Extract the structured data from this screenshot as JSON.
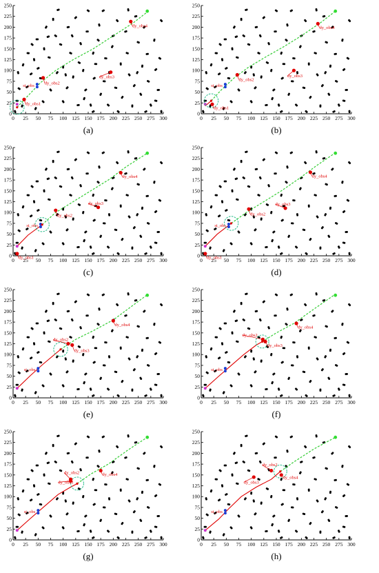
{
  "x_ticks": [
    "0",
    "25",
    "50",
    "75",
    "100",
    "125",
    "150",
    "175",
    "200",
    "225",
    "250",
    "275",
    "300"
  ],
  "y_ticks": [
    "0",
    "25",
    "50",
    "75",
    "100",
    "125",
    "150",
    "175",
    "200",
    "225",
    "250"
  ],
  "colors": {
    "axis": "#000000",
    "obstacle": "#000000",
    "dynamic_obstacle": "#e00000",
    "static_obstacle_marker": "#1a3fd6",
    "planned_path": "#33cc33",
    "traveled_path": "#e00000",
    "start": "#cc33cc",
    "goal": "#33dd33",
    "sensing_circle": "#22bb88"
  },
  "static_obstacles": [
    [
      8,
      30
    ],
    [
      12,
      58
    ],
    [
      10,
      95
    ],
    [
      20,
      113
    ],
    [
      28,
      62
    ],
    [
      30,
      140
    ],
    [
      38,
      160
    ],
    [
      42,
      125
    ],
    [
      45,
      12
    ],
    [
      50,
      105
    ],
    [
      55,
      82
    ],
    [
      60,
      28
    ],
    [
      62,
      150
    ],
    [
      66,
      200
    ],
    [
      70,
      178
    ],
    [
      72,
      130
    ],
    [
      75,
      55
    ],
    [
      80,
      218
    ],
    [
      88,
      95
    ],
    [
      90,
      240
    ],
    [
      95,
      160
    ],
    [
      100,
      28
    ],
    [
      100,
      108
    ],
    [
      108,
      60
    ],
    [
      110,
      200
    ],
    [
      115,
      140
    ],
    [
      118,
      180
    ],
    [
      120,
      85
    ],
    [
      125,
      222
    ],
    [
      130,
      20
    ],
    [
      132,
      118
    ],
    [
      135,
      162
    ],
    [
      140,
      100
    ],
    [
      145,
      55
    ],
    [
      148,
      190
    ],
    [
      150,
      238
    ],
    [
      155,
      20
    ],
    [
      160,
      140
    ],
    [
      162,
      82
    ],
    [
      165,
      115
    ],
    [
      170,
      170
    ],
    [
      172,
      205
    ],
    [
      175,
      45
    ],
    [
      180,
      238
    ],
    [
      185,
      128
    ],
    [
      190,
      20
    ],
    [
      192,
      95
    ],
    [
      198,
      155
    ],
    [
      200,
      180
    ],
    [
      205,
      60
    ],
    [
      208,
      215
    ],
    [
      215,
      115
    ],
    [
      218,
      38
    ],
    [
      225,
      190
    ],
    [
      228,
      140
    ],
    [
      232,
      90
    ],
    [
      238,
      18
    ],
    [
      242,
      65
    ],
    [
      245,
      225
    ],
    [
      250,
      165
    ],
    [
      255,
      45
    ],
    [
      258,
      110
    ],
    [
      262,
      200
    ],
    [
      268,
      138
    ],
    [
      270,
      75
    ],
    [
      275,
      20
    ],
    [
      282,
      170
    ],
    [
      285,
      102
    ],
    [
      290,
      55
    ],
    [
      293,
      128
    ],
    [
      4,
      5
    ],
    [
      18,
      18
    ],
    [
      36,
      92
    ],
    [
      48,
      172
    ],
    [
      85,
      180
    ],
    [
      105,
      90
    ],
    [
      142,
      35
    ],
    [
      160,
      5
    ],
    [
      182,
      75
    ],
    [
      210,
      5
    ],
    [
      230,
      240
    ],
    [
      248,
      95
    ],
    [
      265,
      5
    ],
    [
      285,
      30
    ],
    [
      296,
      215
    ],
    [
      296,
      5
    ]
  ],
  "panels": [
    {
      "letter": "a",
      "label": "(a)",
      "st_obs": {
        "label": "st_obs",
        "x": 48,
        "y": 65
      },
      "dy": [
        {
          "label": "dy_obs1",
          "x": 22,
          "y": 33,
          "lx": 25,
          "ly": 20
        },
        {
          "label": "dy_obs2",
          "x": 60,
          "y": 83,
          "lx": 63,
          "ly": 68
        },
        {
          "label": "dy_obs3",
          "x": 195,
          "y": 96,
          "lx": 172,
          "ly": 82
        },
        {
          "label": "dy_obs4",
          "x": 235,
          "y": 213,
          "lx": 238,
          "ly": 200
        }
      ],
      "robot": [
        8,
        15
      ],
      "circle": {
        "x": 8,
        "y": 15,
        "r": 14
      },
      "traveled": [
        [
          8,
          15
        ]
      ],
      "planned": [
        [
          8,
          15
        ],
        [
          30,
          42
        ],
        [
          55,
          72
        ],
        [
          85,
          100
        ],
        [
          120,
          125
        ],
        [
          160,
          150
        ],
        [
          200,
          180
        ],
        [
          240,
          210
        ],
        [
          268,
          235
        ]
      ]
    },
    {
      "letter": "b",
      "label": "(b)",
      "st_obs": {
        "label": "st_obs",
        "x": 48,
        "y": 65
      },
      "dy": [
        {
          "label": "dy_obs1",
          "x": 22,
          "y": 22,
          "lx": 25,
          "ly": 10
        },
        {
          "label": "dy_obs2",
          "x": 72,
          "y": 90,
          "lx": 75,
          "ly": 76
        },
        {
          "label": "dy_obs3",
          "x": 185,
          "y": 100,
          "lx": 172,
          "ly": 84
        },
        {
          "label": "dy_obs4",
          "x": 233,
          "y": 208,
          "lx": 236,
          "ly": 196
        }
      ],
      "robot": [
        20,
        30
      ],
      "circle": {
        "x": 20,
        "y": 30,
        "r": 14
      },
      "traveled": [
        [
          8,
          18
        ],
        [
          20,
          30
        ]
      ],
      "planned": [
        [
          20,
          30
        ],
        [
          40,
          55
        ],
        [
          65,
          82
        ],
        [
          95,
          108
        ],
        [
          130,
          132
        ],
        [
          165,
          155
        ],
        [
          200,
          180
        ],
        [
          238,
          210
        ],
        [
          268,
          237
        ]
      ]
    },
    {
      "letter": "c",
      "label": "(c)",
      "st_obs": {
        "label": "st_obs",
        "x": 55,
        "y": 70
      },
      "dy": [
        {
          "label": "dy_obs1",
          "x": 8,
          "y": 5,
          "lx": 11,
          "ly": -7
        },
        {
          "label": "dy_obs2",
          "x": 85,
          "y": 105,
          "lx": 88,
          "ly": 90
        },
        {
          "label": "dy_obs3",
          "x": 170,
          "y": 112,
          "lx": 150,
          "ly": 118
        },
        {
          "label": "dy_obs4",
          "x": 215,
          "y": 192,
          "lx": 218,
          "ly": 180
        }
      ],
      "robot": [
        58,
        72
      ],
      "circle": {
        "x": 58,
        "y": 72,
        "r": 14
      },
      "traveled": [
        [
          8,
          22
        ],
        [
          30,
          48
        ],
        [
          58,
          72
        ]
      ],
      "planned": [
        [
          58,
          72
        ],
        [
          85,
          100
        ],
        [
          120,
          125
        ],
        [
          155,
          150
        ],
        [
          190,
          175
        ],
        [
          225,
          205
        ],
        [
          268,
          237
        ]
      ]
    },
    {
      "letter": "d",
      "label": "(d)",
      "st_obs": {
        "label": "st_obs",
        "x": 55,
        "y": 70
      },
      "dy": [
        {
          "label": "dy_obs1",
          "x": 8,
          "y": 5,
          "lx": 11,
          "ly": -7
        },
        {
          "label": "dy_obs2",
          "x": 95,
          "y": 108,
          "lx": 98,
          "ly": 93
        },
        {
          "label": "dy_obs3",
          "x": 168,
          "y": 110,
          "lx": 148,
          "ly": 116
        },
        {
          "label": "dy_obs4",
          "x": 218,
          "y": 193,
          "lx": 221,
          "ly": 181
        }
      ],
      "robot": [
        60,
        75
      ],
      "circle": {
        "x": 60,
        "y": 75,
        "r": 14
      },
      "traveled": [
        [
          8,
          22
        ],
        [
          32,
          50
        ],
        [
          60,
          75
        ]
      ],
      "planned": [
        [
          60,
          75
        ],
        [
          90,
          100
        ],
        [
          125,
          125
        ],
        [
          160,
          150
        ],
        [
          195,
          178
        ],
        [
          230,
          208
        ],
        [
          268,
          238
        ]
      ]
    },
    {
      "letter": "e",
      "label": "(e)",
      "st_obs": {
        "label": "st_obs",
        "x": 50,
        "y": 65
      },
      "dy": [
        {
          "label": "dy_obs2",
          "x": 110,
          "y": 125,
          "lx": 80,
          "ly": 131
        },
        {
          "label": "dy_obs3",
          "x": 118,
          "y": 122,
          "lx": 122,
          "ly": 106
        },
        {
          "label": "dy_obs4",
          "x": 200,
          "y": 178,
          "lx": 203,
          "ly": 166
        }
      ],
      "robot": [
        95,
        112
      ],
      "circle": {
        "x": 95,
        "y": 112,
        "r": 14
      },
      "traveled": [
        [
          8,
          22
        ],
        [
          35,
          52
        ],
        [
          60,
          78
        ],
        [
          95,
          112
        ]
      ],
      "planned": [
        [
          95,
          112
        ],
        [
          125,
          135
        ],
        [
          160,
          155
        ],
        [
          200,
          180
        ],
        [
          235,
          210
        ],
        [
          268,
          238
        ]
      ]
    },
    {
      "letter": "f",
      "label": "(f)",
      "st_obs": {
        "label": "st_obs",
        "x": 48,
        "y": 65
      },
      "dy": [
        {
          "label": "dy_obs2",
          "x": 123,
          "y": 135,
          "lx": 82,
          "ly": 142
        },
        {
          "label": "dy_obs3",
          "x": 128,
          "y": 130,
          "lx": 132,
          "ly": 118
        },
        {
          "label": "dy_obs4",
          "x": 190,
          "y": 172,
          "lx": 193,
          "ly": 160
        }
      ],
      "robot": [
        122,
        130
      ],
      "circle": {
        "x": 122,
        "y": 130,
        "r": 13
      },
      "traveled": [
        [
          8,
          22
        ],
        [
          35,
          50
        ],
        [
          55,
          70
        ],
        [
          85,
          100
        ],
        [
          110,
          122
        ],
        [
          122,
          130
        ]
      ],
      "planned": [
        [
          122,
          130
        ],
        [
          150,
          150
        ],
        [
          185,
          172
        ],
        [
          225,
          205
        ],
        [
          265,
          237
        ]
      ]
    },
    {
      "letter": "g",
      "label": "(g)",
      "st_obs": {
        "label": "st_obs",
        "x": 50,
        "y": 65
      },
      "dy": [
        {
          "label": "dy_obs2",
          "x": 115,
          "y": 140,
          "lx": 102,
          "ly": 152
        },
        {
          "label": "dy_obs3",
          "x": 115,
          "y": 136,
          "lx": 90,
          "ly": 130
        },
        {
          "label": "dy_obs4",
          "x": 175,
          "y": 160,
          "lx": 178,
          "ly": 148
        }
      ],
      "robot": [
        128,
        130
      ],
      "circle": {
        "x": 128,
        "y": 130,
        "r": 13
      },
      "traveled": [
        [
          8,
          22
        ],
        [
          35,
          50
        ],
        [
          60,
          75
        ],
        [
          90,
          105
        ],
        [
          115,
          122
        ],
        [
          128,
          130
        ]
      ],
      "planned": [
        [
          128,
          130
        ],
        [
          155,
          152
        ],
        [
          190,
          175
        ],
        [
          230,
          208
        ],
        [
          268,
          237
        ]
      ]
    },
    {
      "letter": "h",
      "label": "(h)",
      "st_obs": {
        "label": "st_obs",
        "x": 48,
        "y": 65
      },
      "dy": [
        {
          "label": "dy_obs2",
          "x": 140,
          "y": 160,
          "lx": 122,
          "ly": 170
        },
        {
          "label": "dy_obs3",
          "x": 105,
          "y": 145,
          "lx": 85,
          "ly": 130
        },
        {
          "label": "dy_obs4",
          "x": 160,
          "y": 150,
          "lx": 163,
          "ly": 141
        }
      ],
      "robot": [
        158,
        158
      ],
      "circle": {
        "x": 158,
        "y": 158,
        "r": 13
      },
      "traveled": [
        [
          8,
          22
        ],
        [
          35,
          48
        ],
        [
          55,
          72
        ],
        [
          80,
          100
        ],
        [
          110,
          122
        ],
        [
          140,
          140
        ],
        [
          158,
          158
        ]
      ],
      "planned": [
        [
          158,
          158
        ],
        [
          185,
          180
        ],
        [
          225,
          210
        ],
        [
          268,
          237
        ]
      ]
    }
  ]
}
